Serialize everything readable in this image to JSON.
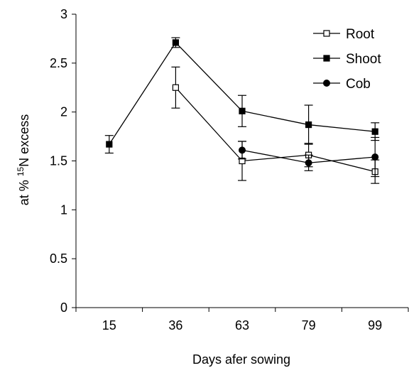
{
  "chart_data": {
    "type": "line",
    "categories": [
      "15",
      "36",
      "63",
      "79",
      "99"
    ],
    "xlabel": "Days afer sowing",
    "ylabel": {
      "prefix": "at % ",
      "superscript": "15",
      "suffix": "N excess"
    },
    "ylim": [
      0,
      3
    ],
    "yticks": [
      "0",
      "0.5",
      "1",
      "1.5",
      "2",
      "2.5",
      "3"
    ],
    "legend_position": "top-right",
    "grid": false,
    "series": [
      {
        "name": "Root",
        "marker": "square-open",
        "color": "#000000",
        "values": [
          null,
          2.25,
          1.5,
          1.56,
          1.39
        ],
        "errors": [
          null,
          0.21,
          0.2,
          0.12,
          0.12
        ]
      },
      {
        "name": "Shoot",
        "marker": "square-filled",
        "color": "#000000",
        "values": [
          1.67,
          2.71,
          2.01,
          1.87,
          1.8
        ],
        "errors": [
          0.09,
          0.05,
          0.16,
          0.2,
          0.09
        ]
      },
      {
        "name": "Cob",
        "marker": "circle-filled",
        "color": "#000000",
        "values": [
          null,
          null,
          1.61,
          1.48,
          1.54
        ],
        "errors": [
          null,
          null,
          0.09,
          0.08,
          0.2
        ]
      }
    ]
  }
}
